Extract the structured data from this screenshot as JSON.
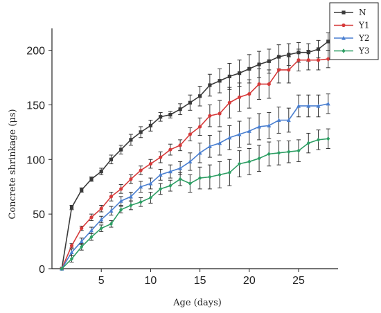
{
  "chart_data": {
    "type": "line",
    "xlabel": "Age (days)",
    "ylabel": "Concrete shrinkage (μs)",
    "xlim": [
      0,
      29
    ],
    "ylim": [
      0,
      220
    ],
    "xticks": [
      5,
      10,
      15,
      20,
      25
    ],
    "yticks": [
      0,
      50,
      100,
      150,
      200
    ],
    "grid": false,
    "legend_position": "top-right, outside plot",
    "x": [
      1,
      2,
      3,
      4,
      5,
      6,
      7,
      8,
      9,
      10,
      11,
      12,
      13,
      14,
      15,
      16,
      17,
      18,
      19,
      20,
      21,
      22,
      23,
      24,
      25,
      26,
      27,
      28
    ],
    "series": [
      {
        "name": "N",
        "color": "#3a3a3a",
        "marker": "square",
        "values": [
          0,
          56,
          72,
          82,
          89,
          100,
          109,
          118,
          125,
          131,
          139,
          141,
          146,
          152,
          158,
          168,
          172,
          176,
          179,
          183,
          187,
          190,
          194,
          196,
          198,
          198,
          201,
          208
        ],
        "errors": [
          0,
          2,
          2,
          2,
          3,
          4,
          4,
          5,
          5,
          5,
          4,
          3,
          5,
          7,
          9,
          10,
          11,
          12,
          12,
          13,
          12,
          11,
          11,
          10,
          9,
          8,
          8,
          8
        ]
      },
      {
        "name": "Y1",
        "color": "#d63a3a",
        "marker": "circle",
        "values": [
          0,
          21,
          37,
          47,
          55,
          66,
          73,
          82,
          90,
          96,
          102,
          109,
          113,
          123,
          130,
          140,
          142,
          152,
          157,
          160,
          169,
          169,
          182,
          182,
          191,
          191,
          191,
          192
        ],
        "errors": [
          0,
          2,
          2,
          3,
          3,
          4,
          4,
          4,
          4,
          4,
          5,
          5,
          5,
          6,
          8,
          10,
          12,
          14,
          13,
          13,
          14,
          13,
          12,
          12,
          10,
          9,
          9,
          8
        ]
      },
      {
        "name": "Y2",
        "color": "#4a7fd0",
        "marker": "triangle",
        "values": [
          0,
          15,
          25,
          35,
          45,
          53,
          62,
          66,
          75,
          78,
          86,
          89,
          92,
          98,
          106,
          112,
          115,
          120,
          123,
          126,
          130,
          131,
          136,
          136,
          149,
          149,
          149,
          151
        ],
        "errors": [
          0,
          3,
          3,
          3,
          3,
          4,
          4,
          4,
          5,
          5,
          5,
          6,
          6,
          8,
          9,
          10,
          11,
          11,
          12,
          12,
          12,
          12,
          12,
          11,
          10,
          10,
          10,
          9
        ]
      },
      {
        "name": "Y3",
        "color": "#2e9e64",
        "marker": "diamond",
        "values": [
          0,
          9,
          20,
          29,
          37,
          41,
          54,
          58,
          61,
          65,
          73,
          76,
          82,
          78,
          83,
          84,
          86,
          88,
          96,
          98,
          101,
          105,
          106,
          107,
          108,
          115,
          118,
          119
        ],
        "errors": [
          0,
          3,
          3,
          3,
          3,
          3,
          3,
          4,
          4,
          5,
          5,
          5,
          6,
          8,
          10,
          11,
          12,
          12,
          12,
          12,
          12,
          11,
          11,
          10,
          10,
          9,
          9,
          9
        ]
      }
    ]
  }
}
